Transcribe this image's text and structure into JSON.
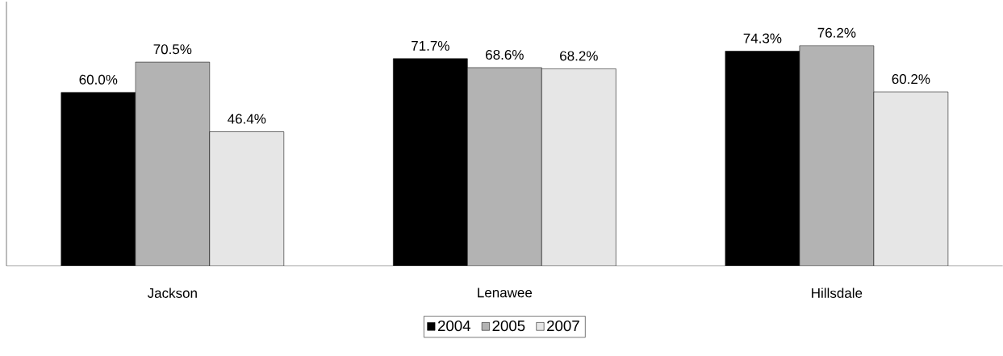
{
  "chart_data": {
    "type": "bar",
    "categories": [
      "Jackson",
      "Lenawee",
      "Hillsdale"
    ],
    "series": [
      {
        "name": "2004",
        "color": "#000000",
        "values": [
          60.0,
          71.7,
          74.3
        ],
        "value_labels": [
          "60.0%",
          "71.7%",
          "74.3%"
        ]
      },
      {
        "name": "2005",
        "color": "#b3b3b3",
        "values": [
          70.5,
          68.6,
          76.2
        ],
        "value_labels": [
          "70.5%",
          "68.6%",
          "76.2%"
        ]
      },
      {
        "name": "2007",
        "color": "#e6e6e6",
        "values": [
          46.4,
          68.2,
          60.2
        ],
        "value_labels": [
          "46.4%",
          "68.2%",
          "60.2%"
        ]
      }
    ],
    "legend": "bottom"
  }
}
